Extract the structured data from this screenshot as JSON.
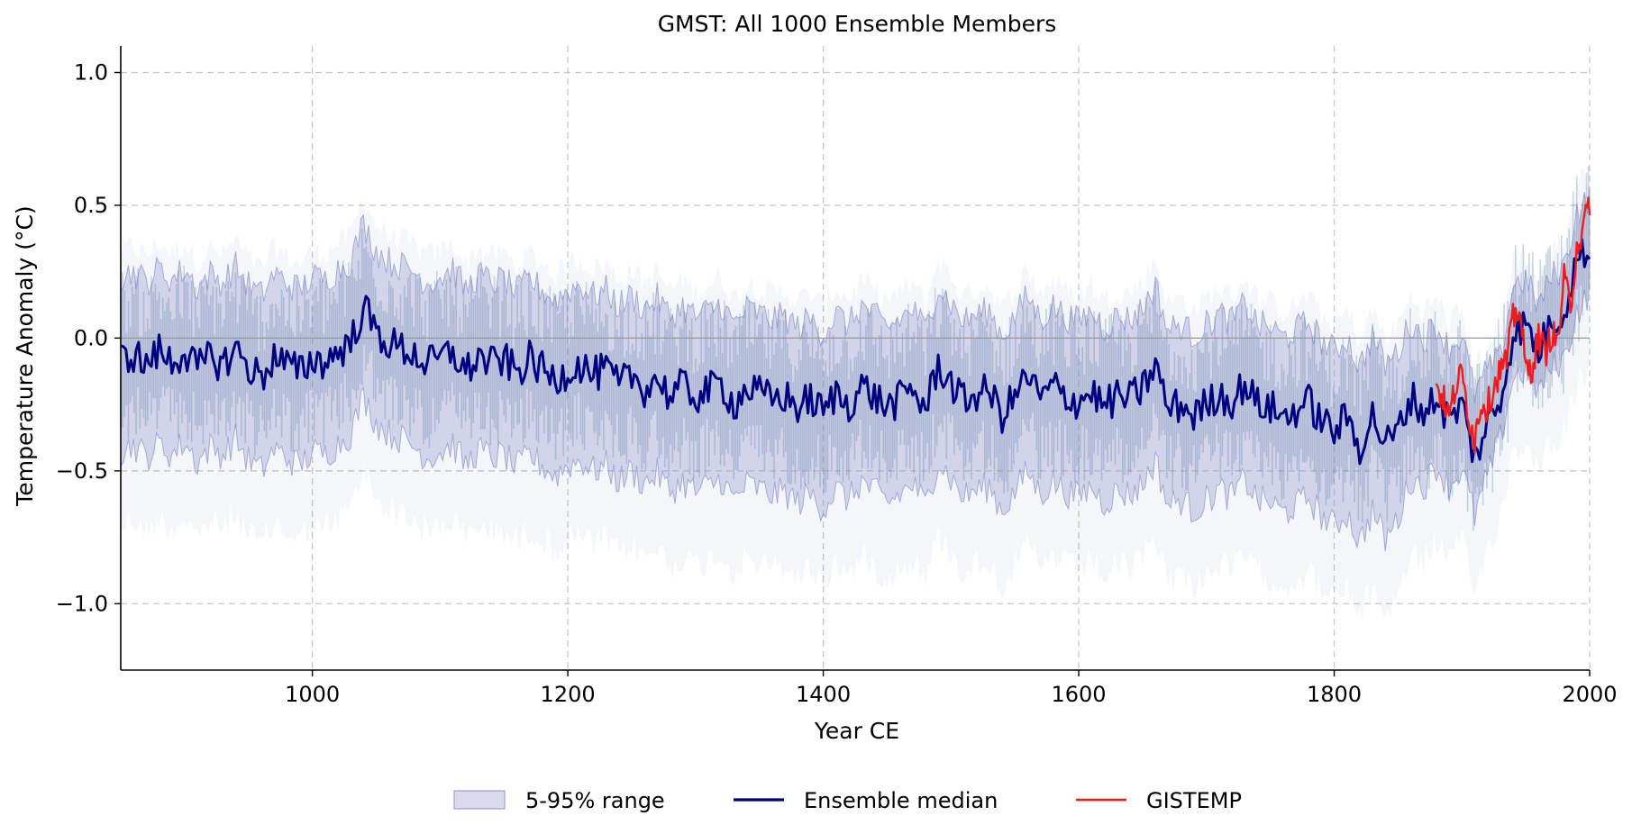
{
  "chart_data": {
    "type": "line",
    "title": "GMST: All 1000 Ensemble Members",
    "xlabel": "Year CE",
    "ylabel": "Temperature Anomaly (°C)",
    "xlim": [
      850,
      2000
    ],
    "ylim": [
      -1.25,
      1.1
    ],
    "x_ticks": [
      1000,
      1200,
      1400,
      1600,
      1800,
      2000
    ],
    "y_ticks": [
      -1.0,
      -0.5,
      0.0,
      0.5,
      1.0
    ],
    "x_tick_labels": [
      "1000",
      "1200",
      "1400",
      "1600",
      "1800",
      "2000"
    ],
    "y_tick_labels": [
      "−1.0",
      "−0.5",
      "0.0",
      "0.5",
      "1.0"
    ],
    "grid": true,
    "zero_line": 0.0,
    "legend_position": "bottom-center",
    "legend": [
      "5-95% range",
      "Ensemble median",
      "GISTEMP"
    ],
    "colors": {
      "median": "#000080",
      "range_fill": "#9a9ad0",
      "range_edge": "#8f8fc8",
      "members": "#4a6f9f",
      "gistemp": "#ee1c1c",
      "grid": "#c8c8c8",
      "zero": "#999999"
    },
    "series": [
      {
        "name": "Ensemble median",
        "x": [
          850,
          860,
          870,
          880,
          890,
          900,
          910,
          920,
          930,
          940,
          950,
          960,
          970,
          980,
          990,
          1000,
          1010,
          1020,
          1030,
          1040,
          1050,
          1060,
          1070,
          1080,
          1090,
          1100,
          1110,
          1120,
          1130,
          1140,
          1150,
          1160,
          1170,
          1180,
          1190,
          1200,
          1210,
          1220,
          1230,
          1240,
          1250,
          1260,
          1270,
          1280,
          1290,
          1300,
          1310,
          1320,
          1330,
          1340,
          1350,
          1360,
          1370,
          1380,
          1390,
          1400,
          1410,
          1420,
          1430,
          1440,
          1450,
          1460,
          1470,
          1480,
          1490,
          1500,
          1510,
          1520,
          1530,
          1540,
          1550,
          1560,
          1570,
          1580,
          1590,
          1600,
          1610,
          1620,
          1630,
          1640,
          1650,
          1660,
          1670,
          1680,
          1690,
          1700,
          1710,
          1720,
          1730,
          1740,
          1750,
          1760,
          1770,
          1780,
          1790,
          1800,
          1810,
          1820,
          1830,
          1840,
          1850,
          1860,
          1870,
          1880,
          1890,
          1900,
          1910,
          1920,
          1930,
          1940,
          1950,
          1960,
          1970,
          1980,
          1990,
          2000
        ],
        "values": [
          -0.08,
          -0.06,
          -0.1,
          -0.05,
          -0.09,
          -0.05,
          -0.12,
          -0.07,
          -0.1,
          -0.04,
          -0.11,
          -0.15,
          -0.07,
          -0.1,
          -0.13,
          -0.08,
          -0.09,
          -0.05,
          -0.02,
          0.12,
          0.02,
          -0.02,
          -0.04,
          -0.06,
          -0.1,
          -0.08,
          -0.05,
          -0.13,
          -0.07,
          -0.1,
          -0.08,
          -0.13,
          -0.08,
          -0.12,
          -0.16,
          -0.12,
          -0.1,
          -0.14,
          -0.12,
          -0.18,
          -0.14,
          -0.19,
          -0.15,
          -0.22,
          -0.18,
          -0.22,
          -0.2,
          -0.17,
          -0.25,
          -0.19,
          -0.21,
          -0.23,
          -0.22,
          -0.26,
          -0.23,
          -0.28,
          -0.21,
          -0.25,
          -0.18,
          -0.22,
          -0.26,
          -0.23,
          -0.19,
          -0.27,
          -0.1,
          -0.17,
          -0.24,
          -0.21,
          -0.2,
          -0.29,
          -0.22,
          -0.14,
          -0.23,
          -0.18,
          -0.22,
          -0.24,
          -0.2,
          -0.26,
          -0.22,
          -0.23,
          -0.19,
          -0.1,
          -0.27,
          -0.25,
          -0.29,
          -0.25,
          -0.21,
          -0.24,
          -0.17,
          -0.25,
          -0.26,
          -0.3,
          -0.27,
          -0.24,
          -0.31,
          -0.35,
          -0.3,
          -0.41,
          -0.29,
          -0.4,
          -0.35,
          -0.22,
          -0.28,
          -0.22,
          -0.31,
          -0.25,
          -0.45,
          -0.33,
          -0.24,
          0.02,
          0.05,
          -0.05,
          0.06,
          0.1,
          0.3,
          0.34
        ]
      },
      {
        "name": "5-95% range",
        "x": [
          850,
          860,
          870,
          880,
          890,
          900,
          910,
          920,
          930,
          940,
          950,
          960,
          970,
          980,
          990,
          1000,
          1010,
          1020,
          1030,
          1040,
          1050,
          1060,
          1070,
          1080,
          1090,
          1100,
          1110,
          1120,
          1130,
          1140,
          1150,
          1160,
          1170,
          1180,
          1190,
          1200,
          1210,
          1220,
          1230,
          1240,
          1250,
          1260,
          1270,
          1280,
          1290,
          1300,
          1310,
          1320,
          1330,
          1340,
          1350,
          1360,
          1370,
          1380,
          1390,
          1400,
          1410,
          1420,
          1430,
          1440,
          1450,
          1460,
          1470,
          1480,
          1490,
          1500,
          1510,
          1520,
          1530,
          1540,
          1550,
          1560,
          1570,
          1580,
          1590,
          1600,
          1610,
          1620,
          1630,
          1640,
          1650,
          1660,
          1670,
          1680,
          1690,
          1700,
          1710,
          1720,
          1730,
          1740,
          1750,
          1760,
          1770,
          1780,
          1790,
          1800,
          1810,
          1820,
          1830,
          1840,
          1850,
          1860,
          1870,
          1880,
          1890,
          1900,
          1910,
          1920,
          1930,
          1940,
          1950,
          1960,
          1970,
          1980,
          1990,
          2000
        ],
        "lower": [
          -0.43,
          -0.4,
          -0.45,
          -0.4,
          -0.44,
          -0.39,
          -0.47,
          -0.41,
          -0.44,
          -0.38,
          -0.46,
          -0.5,
          -0.42,
          -0.45,
          -0.48,
          -0.43,
          -0.44,
          -0.4,
          -0.36,
          -0.22,
          -0.32,
          -0.36,
          -0.38,
          -0.41,
          -0.45,
          -0.43,
          -0.4,
          -0.48,
          -0.42,
          -0.45,
          -0.44,
          -0.49,
          -0.44,
          -0.48,
          -0.52,
          -0.48,
          -0.46,
          -0.5,
          -0.48,
          -0.54,
          -0.5,
          -0.55,
          -0.51,
          -0.58,
          -0.54,
          -0.58,
          -0.56,
          -0.53,
          -0.61,
          -0.55,
          -0.57,
          -0.59,
          -0.58,
          -0.62,
          -0.59,
          -0.64,
          -0.57,
          -0.61,
          -0.54,
          -0.58,
          -0.62,
          -0.59,
          -0.55,
          -0.63,
          -0.46,
          -0.53,
          -0.6,
          -0.57,
          -0.56,
          -0.65,
          -0.58,
          -0.5,
          -0.59,
          -0.54,
          -0.58,
          -0.6,
          -0.56,
          -0.62,
          -0.58,
          -0.59,
          -0.55,
          -0.46,
          -0.63,
          -0.61,
          -0.65,
          -0.61,
          -0.57,
          -0.6,
          -0.53,
          -0.61,
          -0.62,
          -0.66,
          -0.63,
          -0.6,
          -0.67,
          -0.71,
          -0.66,
          -0.77,
          -0.65,
          -0.76,
          -0.68,
          -0.53,
          -0.56,
          -0.48,
          -0.56,
          -0.49,
          -0.67,
          -0.52,
          -0.38,
          -0.15,
          -0.12,
          -0.2,
          -0.11,
          -0.08,
          0.1,
          0.16
        ],
        "upper": [
          0.23,
          0.25,
          0.21,
          0.26,
          0.22,
          0.26,
          0.19,
          0.24,
          0.21,
          0.27,
          0.2,
          0.16,
          0.24,
          0.21,
          0.18,
          0.23,
          0.22,
          0.26,
          0.29,
          0.43,
          0.33,
          0.29,
          0.27,
          0.25,
          0.21,
          0.23,
          0.26,
          0.18,
          0.24,
          0.21,
          0.22,
          0.17,
          0.22,
          0.18,
          0.14,
          0.18,
          0.2,
          0.16,
          0.18,
          0.12,
          0.16,
          0.11,
          0.15,
          0.08,
          0.12,
          0.08,
          0.1,
          0.13,
          0.05,
          0.11,
          0.09,
          0.07,
          0.08,
          0.04,
          0.07,
          0.02,
          0.09,
          0.05,
          0.12,
          0.08,
          0.04,
          0.07,
          0.11,
          0.03,
          0.2,
          0.13,
          0.06,
          0.09,
          0.1,
          0.01,
          0.08,
          0.16,
          0.07,
          0.12,
          0.08,
          0.06,
          0.1,
          0.04,
          0.08,
          0.07,
          0.11,
          0.2,
          0.03,
          0.05,
          0.01,
          0.05,
          0.09,
          0.06,
          0.13,
          0.05,
          0.04,
          0.0,
          0.03,
          0.06,
          -0.01,
          -0.05,
          0.0,
          -0.11,
          0.01,
          -0.1,
          -0.05,
          0.06,
          0.0,
          0.05,
          -0.04,
          0.01,
          -0.21,
          -0.12,
          -0.08,
          0.2,
          0.22,
          0.12,
          0.23,
          0.27,
          0.48,
          0.52
        ]
      },
      {
        "name": "GISTEMP",
        "x": [
          1880,
          1885,
          1890,
          1895,
          1900,
          1905,
          1910,
          1915,
          1920,
          1925,
          1930,
          1935,
          1940,
          1945,
          1950,
          1955,
          1960,
          1965,
          1970,
          1975,
          1980,
          1985,
          1990,
          1995,
          2000
        ],
        "values": [
          -0.18,
          -0.22,
          -0.3,
          -0.18,
          -0.14,
          -0.28,
          -0.38,
          -0.24,
          -0.26,
          -0.18,
          -0.12,
          -0.09,
          0.07,
          0.12,
          -0.12,
          -0.11,
          0.01,
          -0.06,
          0.02,
          -0.02,
          0.22,
          0.12,
          0.35,
          0.4,
          0.52
        ]
      }
    ]
  }
}
